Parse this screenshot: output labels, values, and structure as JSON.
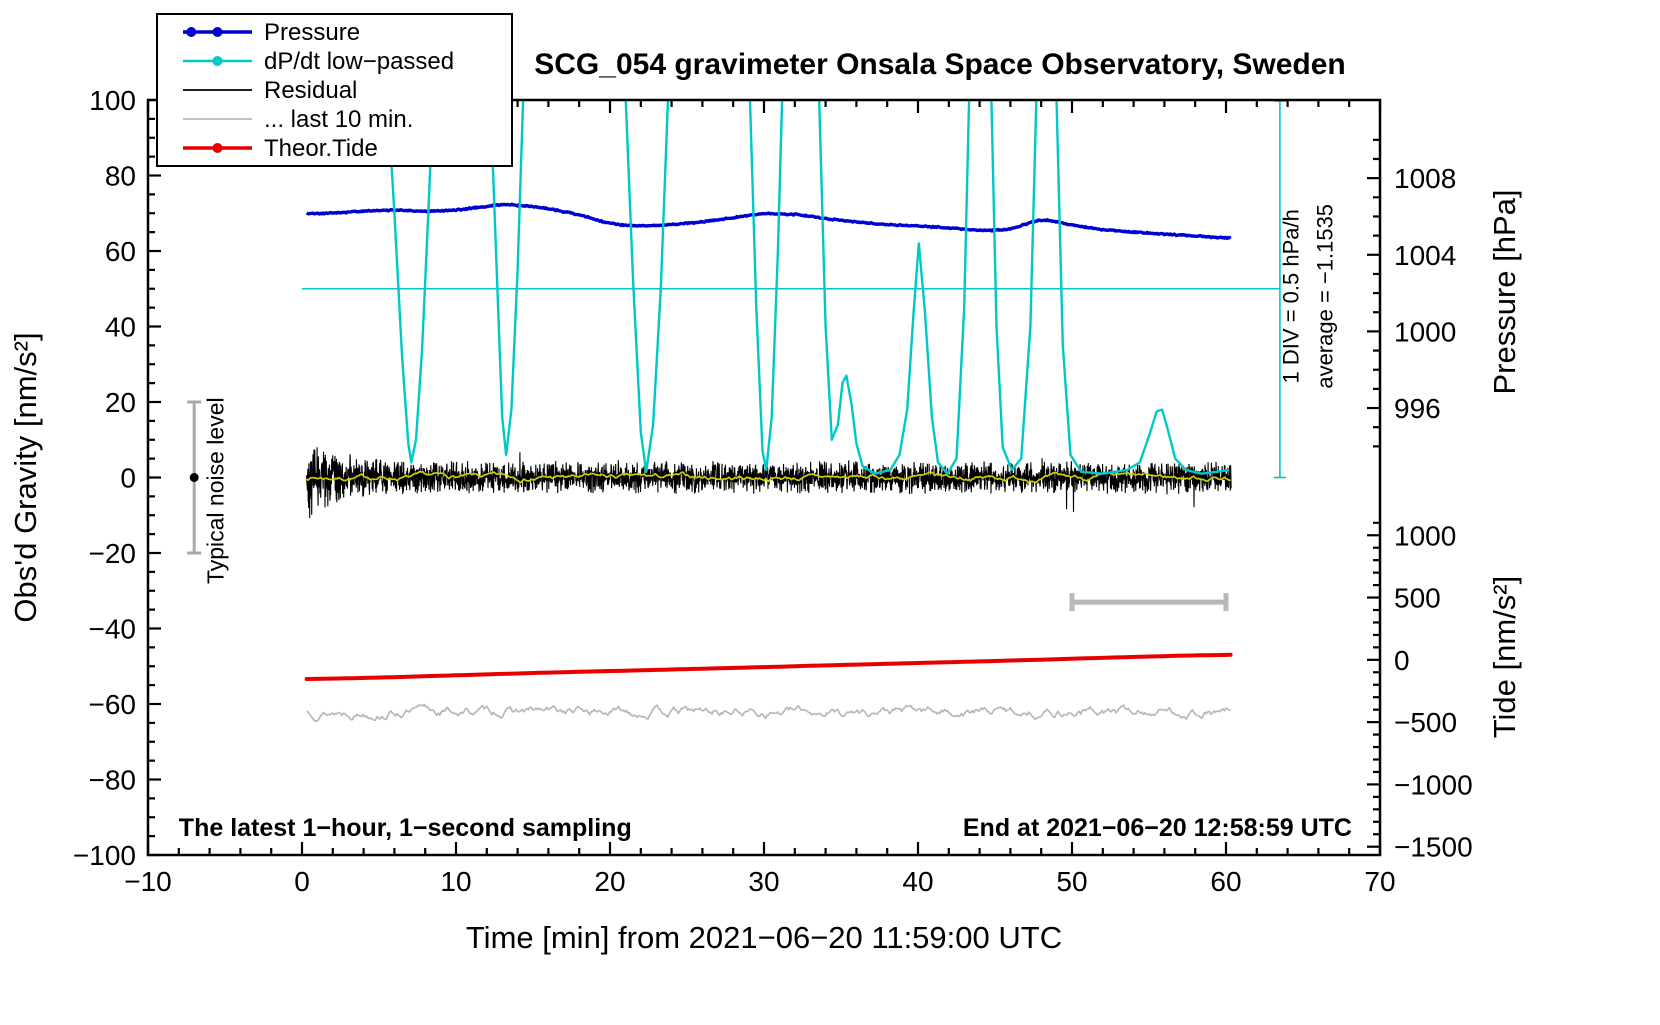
{
  "chart_data": {
    "type": "line",
    "title": "SCG_054 gravimeter Onsala Space Observatory, Sweden",
    "xlabel": "Time [min] from 2021−06−20 11:59:00 UTC",
    "ylabel": "Obs'd Gravity [nm/s²]",
    "ylabel_pressure": "Pressure [hPa]",
    "ylabel_tide": "Tide [nm/s²]",
    "xlim": [
      -10,
      70
    ],
    "ylim": [
      -100,
      100
    ],
    "x_axis": {
      "majors": [
        -10,
        0,
        10,
        20,
        30,
        40,
        50,
        60,
        70
      ],
      "labels": [
        "−10",
        "0",
        "10",
        "20",
        "30",
        "40",
        "50",
        "60",
        "70"
      ],
      "minor_step": 2
    },
    "y_axis": {
      "majors": [
        -100,
        -80,
        -60,
        -40,
        -20,
        0,
        20,
        40,
        60,
        80,
        100
      ],
      "labels": [
        "−100",
        "−80",
        "−60",
        "−40",
        "−20",
        "0",
        "20",
        "40",
        "60",
        "80",
        "100"
      ],
      "minor_step": 5
    },
    "pressure_axis": {
      "majors": [
        996,
        1000,
        1004,
        1008
      ],
      "labels": [
        "996",
        "1000",
        "1004",
        "1008"
      ],
      "minor_step": 1,
      "minor_range": [
        994,
        1010
      ],
      "p_ref": 996,
      "g_ref": 18.4,
      "g_per_unit": 5.075
    },
    "tide_axis": {
      "majors": [
        1000,
        500,
        0,
        -500,
        -1000,
        -1500
      ],
      "labels": [
        "1000",
        "500",
        "0",
        "−500",
        "−1000",
        "−1500"
      ],
      "minor_step": 100,
      "minor_range": [
        -1500,
        1100
      ],
      "g_ref": -48.3,
      "g_per_unit": 0.033
    },
    "legend": {
      "items": [
        {
          "label": "Pressure",
          "color": "#0000d2",
          "line_width": 3.5,
          "markers": [
            0.12,
            0.5
          ]
        },
        {
          "label": "dP/dt low−passed",
          "color": "#00c8c8",
          "line_width": 2.4,
          "markers": [
            0.5
          ]
        },
        {
          "label": "Residual",
          "color": "#000000",
          "line_width": 1.8,
          "markers": []
        },
        {
          "label": "... last 10 min.",
          "color": "#b8b8b8",
          "line_width": 1.8,
          "markers": []
        },
        {
          "label": "Theor.Tide",
          "color": "#e60000",
          "line_width": 3.5,
          "markers": [
            0.5
          ]
        }
      ]
    },
    "series": {
      "pressure": {
        "label": "Pressure",
        "color": "#0000d2",
        "width": 3.4,
        "x": [
          0.3,
          2,
          4,
          6,
          8,
          10,
          12,
          13,
          14,
          16,
          18,
          20,
          22,
          24,
          26,
          28,
          30,
          32,
          34,
          36,
          38,
          40,
          42,
          44,
          46,
          48,
          50,
          52,
          54,
          56,
          58,
          60.3
        ],
        "p": [
          1006.15,
          1006.18,
          1006.28,
          1006.33,
          1006.28,
          1006.34,
          1006.52,
          1006.62,
          1006.58,
          1006.4,
          1006.08,
          1005.64,
          1005.52,
          1005.58,
          1005.73,
          1005.93,
          1006.14,
          1006.1,
          1005.9,
          1005.72,
          1005.58,
          1005.5,
          1005.4,
          1005.28,
          1005.36,
          1005.8,
          1005.55,
          1005.32,
          1005.18,
          1005.08,
          1004.98,
          1004.88
        ]
      },
      "dpdt": {
        "label": "dP/dt low−passed",
        "color": "#00c8c8",
        "width": 2.4,
        "points": [
          [
            0.3,
            140
          ],
          [
            4.9,
            140
          ],
          [
            5.3,
            118
          ],
          [
            6.0,
            70
          ],
          [
            6.5,
            32
          ],
          [
            6.9,
            9
          ],
          [
            7.1,
            4
          ],
          [
            7.4,
            10
          ],
          [
            7.8,
            34
          ],
          [
            8.2,
            70
          ],
          [
            8.7,
            118
          ],
          [
            9.1,
            140
          ],
          [
            11.6,
            140
          ],
          [
            12.1,
            115
          ],
          [
            12.6,
            60
          ],
          [
            13.0,
            16
          ],
          [
            13.25,
            6
          ],
          [
            13.6,
            18
          ],
          [
            14.0,
            55
          ],
          [
            14.5,
            118
          ],
          [
            14.9,
            140
          ],
          [
            20.3,
            140
          ],
          [
            20.9,
            112
          ],
          [
            21.5,
            52
          ],
          [
            22.0,
            12
          ],
          [
            22.35,
            1.5
          ],
          [
            22.8,
            14
          ],
          [
            23.3,
            50
          ],
          [
            23.9,
            115
          ],
          [
            24.3,
            140
          ],
          [
            28.5,
            140
          ],
          [
            29.0,
            112
          ],
          [
            29.5,
            45
          ],
          [
            29.9,
            7
          ],
          [
            30.15,
            2
          ],
          [
            30.5,
            16
          ],
          [
            30.9,
            60
          ],
          [
            31.3,
            118
          ],
          [
            31.7,
            140
          ],
          [
            33.0,
            140
          ],
          [
            33.5,
            112
          ],
          [
            34.0,
            40
          ],
          [
            34.4,
            10
          ],
          [
            34.8,
            14
          ],
          [
            35.1,
            25
          ],
          [
            35.35,
            27
          ],
          [
            35.7,
            19
          ],
          [
            36.0,
            9
          ],
          [
            36.4,
            3
          ],
          [
            37.2,
            1
          ],
          [
            38.2,
            2
          ],
          [
            38.8,
            6
          ],
          [
            39.3,
            18
          ],
          [
            39.7,
            43
          ],
          [
            40.05,
            62
          ],
          [
            40.45,
            44
          ],
          [
            40.9,
            16
          ],
          [
            41.3,
            4
          ],
          [
            41.9,
            1
          ],
          [
            42.5,
            5
          ],
          [
            43.0,
            45
          ],
          [
            43.4,
            115
          ],
          [
            43.7,
            140
          ],
          [
            44.3,
            140
          ],
          [
            44.7,
            112
          ],
          [
            45.1,
            40
          ],
          [
            45.5,
            8
          ],
          [
            46.1,
            2
          ],
          [
            46.7,
            5
          ],
          [
            47.3,
            40
          ],
          [
            47.8,
            118
          ],
          [
            48.1,
            140
          ],
          [
            48.5,
            140
          ],
          [
            48.9,
            115
          ],
          [
            49.4,
            35
          ],
          [
            49.9,
            6
          ],
          [
            50.6,
            1.5
          ],
          [
            52.0,
            1
          ],
          [
            53.6,
            2
          ],
          [
            54.4,
            4
          ],
          [
            55.0,
            11
          ],
          [
            55.5,
            17.5
          ],
          [
            55.85,
            18
          ],
          [
            56.2,
            13
          ],
          [
            56.7,
            5
          ],
          [
            57.4,
            2
          ],
          [
            58.4,
            1
          ],
          [
            59.4,
            1.5
          ],
          [
            60.2,
            2
          ]
        ]
      },
      "residual": {
        "label": "Residual",
        "color": "#000000",
        "width": 1.1,
        "noise": {
          "seed": 42,
          "n": 3620,
          "x0": 0.3,
          "x1": 60.33,
          "base": 4.6,
          "amp": 8.0,
          "decay": 1.9,
          "spike_p": 0.006,
          "spike_mult": 2.1
        }
      },
      "residual_lp": {
        "label": "Residual low-passed",
        "color": "#cfcf00",
        "width": 1.7,
        "offset_g": 0,
        "smooth": {
          "seed": 7,
          "n": 605,
          "x0": 0.3,
          "x1": 60.3,
          "persist": 0.9,
          "step": 0.8
        }
      },
      "last10": {
        "label": "... last 10 min.",
        "color": "#b8b8b8",
        "width": 1.7,
        "offset_g": -62,
        "smooth": {
          "seed": 13,
          "n": 605,
          "x0": 0.3,
          "x1": 60.3,
          "persist": 0.86,
          "step": 1.5
        }
      },
      "tide": {
        "label": "Theor.Tide",
        "color": "#e60000",
        "width": 4,
        "x": [
          0.3,
          15,
          30,
          45,
          60.3
        ],
        "t": [
          -154,
          -106,
          -58,
          -9,
          40
        ]
      }
    },
    "annotations": {
      "noise_bar": {
        "x": -7,
        "center_g": 0,
        "half_g": 20,
        "color": "#a8a8a8",
        "label": "Typical noise level",
        "label_x": -5.1,
        "label_g": -3.5
      },
      "window_bar": {
        "x0": 50,
        "x1": 60,
        "g": -33,
        "color": "#b8b8b8"
      },
      "div_note": {
        "text": "1 DIV = 0.5 hPa/h",
        "x": 64.7,
        "g": 48
      },
      "avg_note": {
        "text": "average = −1.1535",
        "x": 66.9,
        "g": 48
      },
      "bottom_left": "The latest 1−hour, 1−second sampling",
      "bottom_right": "End at 2021−06−20 12:58:59 UTC",
      "dpdt_zero_line": {
        "g": 50,
        "x0": 0,
        "x1": 63.5
      },
      "dpdt_scale_bar": {
        "x": 63.5,
        "g0": 0,
        "g1": 100
      }
    }
  }
}
